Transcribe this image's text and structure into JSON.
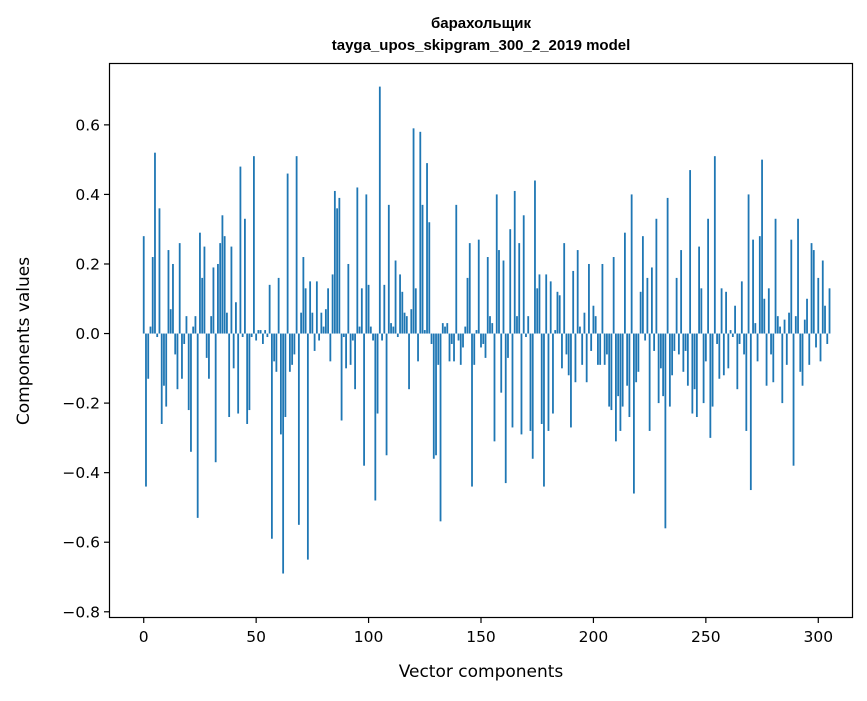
{
  "colors": {
    "bar": "#1f77b4",
    "axis": "#000000",
    "background": "#ffffff"
  },
  "chart_data": {
    "type": "bar",
    "title": "барахольщик",
    "subtitle": "tayga_upos_skipgram_300_2_2019 model",
    "xlabel": "Vector components",
    "ylabel": "Components values",
    "xlim": [
      -15,
      315
    ],
    "ylim": [
      -0.815,
      0.775
    ],
    "grid": false,
    "legend": "none",
    "x_ticks": [
      {
        "value": 0,
        "label": "0"
      },
      {
        "value": 50,
        "label": "50"
      },
      {
        "value": 100,
        "label": "100"
      },
      {
        "value": 150,
        "label": "150"
      },
      {
        "value": 200,
        "label": "200"
      },
      {
        "value": 250,
        "label": "250"
      },
      {
        "value": 300,
        "label": "300"
      }
    ],
    "y_ticks": [
      {
        "value": -0.8,
        "label": "−0.8"
      },
      {
        "value": -0.6,
        "label": "−0.6"
      },
      {
        "value": -0.4,
        "label": "−0.4"
      },
      {
        "value": -0.2,
        "label": "−0.2"
      },
      {
        "value": 0.0,
        "label": "0.0"
      },
      {
        "value": 0.2,
        "label": "0.2"
      },
      {
        "value": 0.4,
        "label": "0.4"
      },
      {
        "value": 0.6,
        "label": "0.6"
      }
    ],
    "values": [
      0.28,
      -0.44,
      -0.13,
      0.02,
      0.22,
      0.52,
      -0.01,
      0.36,
      -0.26,
      -0.15,
      -0.21,
      0.24,
      0.07,
      0.2,
      -0.06,
      -0.16,
      0.26,
      -0.13,
      -0.03,
      0.05,
      -0.22,
      -0.34,
      0.02,
      0.05,
      -0.53,
      0.29,
      0.16,
      0.25,
      -0.07,
      -0.13,
      0.05,
      0.19,
      -0.37,
      0.2,
      0.26,
      0.34,
      0.28,
      0.06,
      -0.24,
      0.25,
      -0.1,
      0.09,
      -0.23,
      0.48,
      -0.01,
      0.33,
      -0.26,
      -0.22,
      -0.01,
      0.51,
      -0.02,
      0.01,
      0.01,
      -0.03,
      0.01,
      -0.01,
      0.14,
      -0.59,
      -0.08,
      -0.11,
      0.16,
      -0.29,
      -0.69,
      -0.24,
      0.46,
      -0.11,
      -0.09,
      -0.06,
      0.51,
      -0.55,
      0.06,
      0.22,
      0.13,
      -0.65,
      0.15,
      0.06,
      -0.05,
      0.15,
      -0.02,
      0.06,
      0.02,
      0.07,
      0.13,
      -0.08,
      0.17,
      0.41,
      0.36,
      0.39,
      -0.25,
      -0.01,
      -0.1,
      0.2,
      -0.09,
      -0.02,
      -0.16,
      0.42,
      0.02,
      0.13,
      -0.38,
      0.4,
      0.14,
      0.02,
      -0.02,
      -0.48,
      -0.23,
      0.71,
      -0.02,
      0.14,
      -0.35,
      0.37,
      0.03,
      0.02,
      0.21,
      -0.01,
      0.17,
      0.12,
      0.06,
      0.05,
      -0.16,
      0.07,
      0.59,
      0.13,
      -0.08,
      0.58,
      0.37,
      0.01,
      0.49,
      0.32,
      -0.03,
      -0.36,
      -0.35,
      -0.09,
      -0.54,
      0.03,
      0.02,
      0.03,
      -0.08,
      -0.03,
      -0.08,
      0.37,
      -0.02,
      -0.09,
      -0.04,
      0.02,
      0.16,
      0.26,
      -0.44,
      -0.09,
      0.01,
      0.27,
      -0.04,
      -0.03,
      -0.07,
      0.22,
      0.05,
      0.03,
      -0.31,
      0.4,
      0.24,
      -0.17,
      0.21,
      -0.43,
      -0.07,
      0.3,
      -0.27,
      0.41,
      0.05,
      0.26,
      -0.29,
      0.34,
      -0.01,
      0.05,
      -0.28,
      -0.36,
      0.44,
      0.13,
      0.17,
      -0.26,
      -0.44,
      0.17,
      -0.28,
      0.15,
      -0.23,
      0.01,
      0.12,
      0.11,
      -0.1,
      0.26,
      -0.06,
      -0.12,
      -0.27,
      0.18,
      -0.14,
      0.24,
      0.02,
      -0.09,
      0.06,
      -0.14,
      0.2,
      -0.05,
      0.08,
      0.05,
      -0.09,
      -0.09,
      0.2,
      -0.09,
      -0.06,
      -0.21,
      -0.22,
      0.22,
      -0.31,
      -0.18,
      -0.28,
      -0.21,
      0.29,
      -0.15,
      -0.24,
      0.4,
      -0.46,
      -0.14,
      -0.11,
      0.12,
      0.28,
      -0.02,
      0.16,
      -0.28,
      0.19,
      -0.05,
      0.33,
      -0.2,
      -0.1,
      -0.18,
      -0.56,
      0.39,
      -0.21,
      -0.12,
      -0.05,
      0.16,
      -0.06,
      0.24,
      -0.11,
      -0.05,
      -0.15,
      0.47,
      -0.23,
      -0.16,
      -0.24,
      0.25,
      0.13,
      -0.2,
      -0.08,
      0.33,
      -0.3,
      -0.21,
      0.51,
      -0.03,
      -0.13,
      0.13,
      -0.12,
      0.12,
      -0.1,
      0.01,
      -0.01,
      0.08,
      -0.16,
      -0.03,
      0.15,
      -0.06,
      -0.28,
      0.4,
      -0.45,
      0.27,
      0.03,
      -0.08,
      0.28,
      0.5,
      0.1,
      -0.15,
      0.13,
      -0.06,
      -0.14,
      0.33,
      0.05,
      0.02,
      -0.2,
      0.04,
      -0.09,
      0.06,
      0.27,
      -0.38,
      0.05,
      0.33,
      -0.11,
      -0.15,
      0.04,
      0.1,
      -0.09,
      0.26,
      0.24,
      -0.04,
      0.16,
      -0.08,
      0.21,
      0.08,
      -0.03,
      0.13
    ]
  }
}
